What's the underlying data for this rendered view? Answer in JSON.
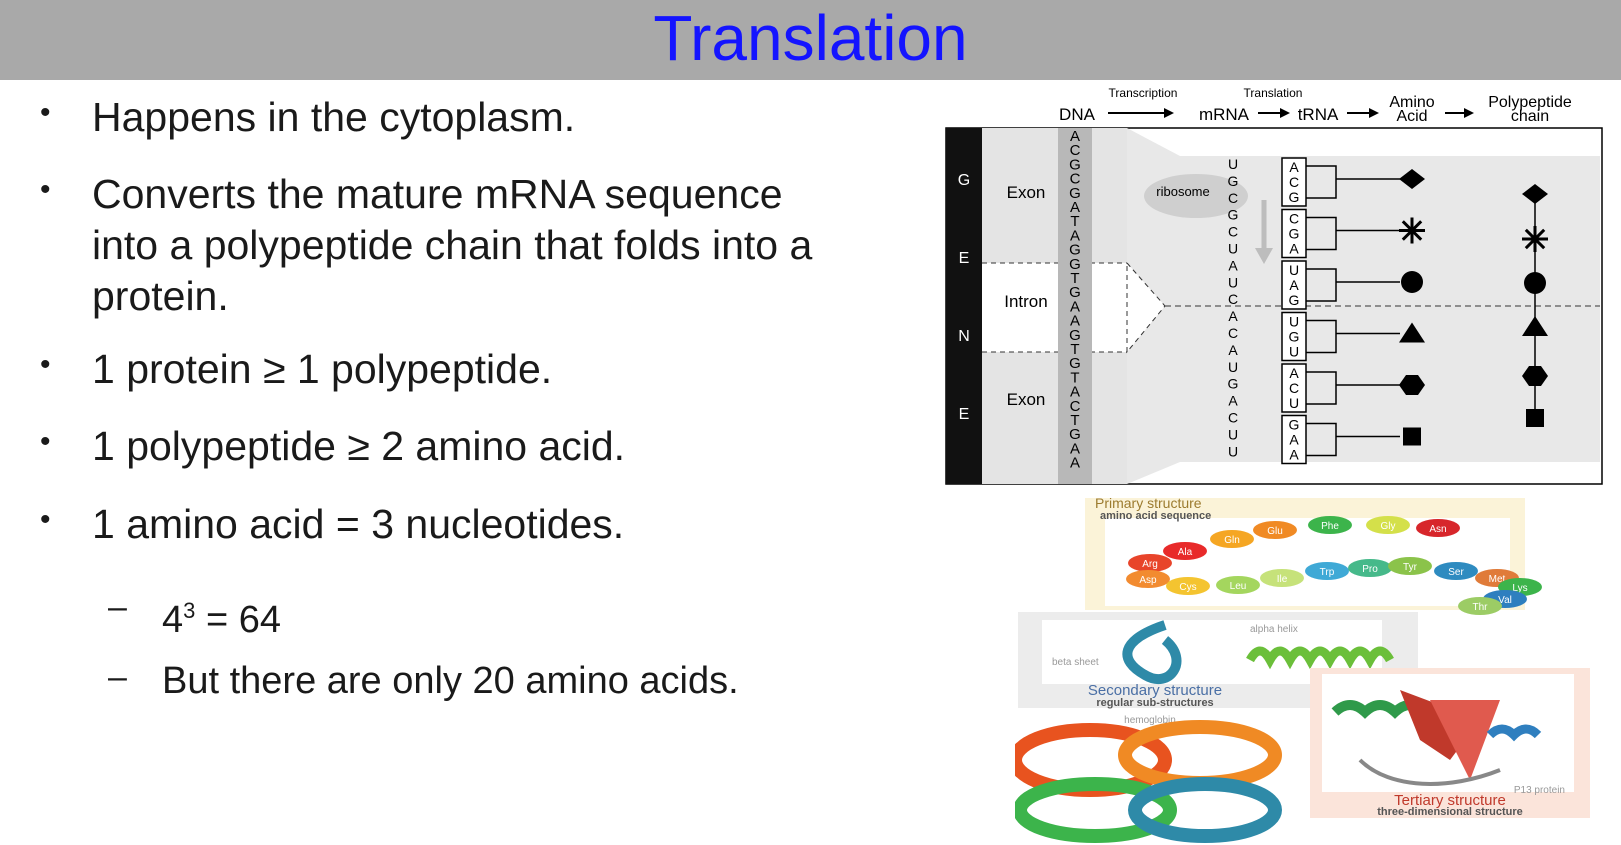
{
  "title": "Translation",
  "bullets": [
    {
      "text": "Happens in the cytoplasm."
    },
    {
      "lines": [
        "Converts the mature mRNA sequence",
        "into a polypeptide chain that folds into a",
        "protein."
      ]
    },
    {
      "text": "1 protein ≥ 1 polypeptide."
    },
    {
      "text": "1 polypeptide ≥ 2 amino acid."
    },
    {
      "text": "1 amino acid = 3 nucleotides."
    }
  ],
  "sub_bullets": {
    "power_base": "4",
    "power_exp": "3",
    "power_rest": " = 64",
    "second": "But there are only 20 amino acids."
  },
  "bullet_symbol": "•",
  "dash_symbol": "–",
  "diagram": {
    "header": {
      "dna": "DNA",
      "transcription": "Transcription",
      "mrna": "mRNA",
      "translation": "Translation",
      "trna": "tRNA",
      "amino_acid": [
        "Amino",
        "Acid"
      ],
      "polypeptide": [
        "Polypeptide",
        "chain"
      ]
    },
    "gene_letters": [
      "G",
      "E",
      "N",
      "E"
    ],
    "labels": {
      "exon1": "Exon",
      "intron": "Intron",
      "exon2": "Exon",
      "ribosome": "ribosome"
    },
    "dna_seq": [
      "A",
      "C",
      "G",
      "C",
      "G",
      "A",
      "T",
      "A",
      "G",
      "G",
      "T",
      "G",
      "A",
      "A",
      "G",
      "T",
      "G",
      "T",
      "A",
      "C",
      "T",
      "G",
      "A",
      "A"
    ],
    "mrna_seq": [
      "U",
      "G",
      "C",
      "G",
      "C",
      "U",
      "A",
      "U",
      "C",
      "A",
      "C",
      "A",
      "U",
      "G",
      "A",
      "C",
      "U",
      "U"
    ],
    "codons": [
      [
        "A",
        "C",
        "G"
      ],
      [
        "C",
        "G",
        "A"
      ],
      [
        "U",
        "A",
        "G"
      ],
      [
        "U",
        "G",
        "U"
      ],
      [
        "A",
        "C",
        "U"
      ],
      [
        "G",
        "A",
        "A"
      ]
    ],
    "amino_shapes": [
      "diamond-icon",
      "star-icon",
      "circle-icon",
      "triangle-icon",
      "hexagon-icon",
      "square-icon"
    ]
  },
  "protein": {
    "primary_title": "Primary structure",
    "primary_sub": "amino acid sequence",
    "amino_acids": [
      {
        "name": "Arg",
        "color": "#e8442a"
      },
      {
        "name": "Ala",
        "color": "#e82a2a"
      },
      {
        "name": "Gln",
        "color": "#f5a623"
      },
      {
        "name": "Glu",
        "color": "#f08a24"
      },
      {
        "name": "Phe",
        "color": "#3cb44b"
      },
      {
        "name": "Gly",
        "color": "#d4e04a"
      },
      {
        "name": "Asn",
        "color": "#d7262b"
      },
      {
        "name": "Asp",
        "color": "#f28b30"
      },
      {
        "name": "Cys",
        "color": "#f4c430"
      },
      {
        "name": "Leu",
        "color": "#a4d65e"
      },
      {
        "name": "Ile",
        "color": "#c6e27a"
      },
      {
        "name": "Trp",
        "color": "#3fa9d6"
      },
      {
        "name": "Pro",
        "color": "#46b98a"
      },
      {
        "name": "Tyr",
        "color": "#8bc34a"
      },
      {
        "name": "Ser",
        "color": "#2e8bc0"
      },
      {
        "name": "Met",
        "color": "#e07b39"
      },
      {
        "name": "Lys",
        "color": "#3cb44b"
      },
      {
        "name": "Val",
        "color": "#2e7fbf"
      },
      {
        "name": "Thr",
        "color": "#9ccc65"
      }
    ],
    "alpha_helix": "alpha helix",
    "beta_sheet": "beta sheet",
    "secondary_title": "Secondary structure",
    "secondary_sub": "regular sub-structures",
    "hemoglobin": "hemoglobin",
    "p13": "P13 protein",
    "tertiary_title": "Tertiary structure",
    "tertiary_sub": "three-dimensional structure"
  }
}
